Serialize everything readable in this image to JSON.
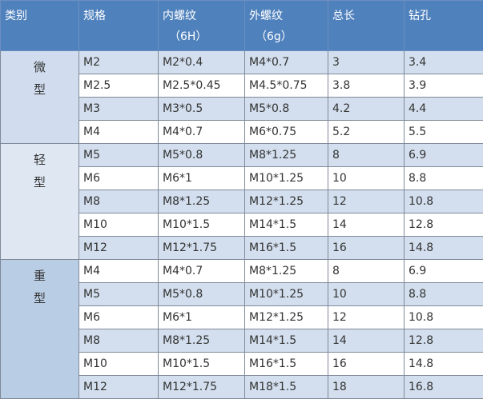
{
  "header": {
    "category": "类别",
    "spec": "规格",
    "internal_thread": "内螺纹",
    "internal_thread_sub": "（6H）",
    "external_thread": "外螺纹",
    "external_thread_sub": "（6g）",
    "total_length": "总长",
    "drill_hole": "钻孔"
  },
  "colors": {
    "header": "#4f81bd",
    "stripe": "#d3dfee",
    "cat_heavy": "#b9cde5"
  },
  "groups": [
    {
      "category": [
        "微",
        "型"
      ],
      "rows": [
        [
          "M2",
          "M2*0.4",
          "M4*0.7",
          "3",
          "3.4"
        ],
        [
          "M2.5",
          "M2.5*0.45",
          "M4.5*0.75",
          "3.8",
          "3.9"
        ],
        [
          "M3",
          "M3*0.5",
          "M5*0.8",
          "4.2",
          "4.4"
        ],
        [
          "M4",
          "M4*0.7",
          "M6*0.75",
          "5.2",
          "5.5"
        ]
      ]
    },
    {
      "category": [
        "轻",
        "型"
      ],
      "rows": [
        [
          "M5",
          "M5*0.8",
          "M8*1.25",
          "8",
          "6.9"
        ],
        [
          "M6",
          "M6*1",
          "M10*1.25",
          "10",
          "8.8"
        ],
        [
          "M8",
          "M8*1.25",
          "M12*1.25",
          "12",
          "10.8"
        ],
        [
          "M10",
          "M10*1.5",
          "M14*1.5",
          "14",
          "12.8"
        ],
        [
          "M12",
          "M12*1.75",
          "M16*1.5",
          "16",
          "14.8"
        ]
      ]
    },
    {
      "category": [
        "重",
        "型"
      ],
      "rows": [
        [
          "M4",
          "M4*0.7",
          "M8*1.25",
          "8",
          "6.9"
        ],
        [
          "M5",
          "M5*0.8",
          "M10*1.25",
          "10",
          "8.8"
        ],
        [
          "M6",
          "M6*1",
          "M12*1.25",
          "12",
          "10.8"
        ],
        [
          "M8",
          "M8*1.25",
          "M14*1.5",
          "14",
          "12.8"
        ],
        [
          "M10",
          "M10*1.5",
          "M16*1.5",
          "16",
          "14.8"
        ],
        [
          "M12",
          "M12*1.75",
          "M18*1.5",
          "18",
          "16.8"
        ]
      ]
    }
  ]
}
